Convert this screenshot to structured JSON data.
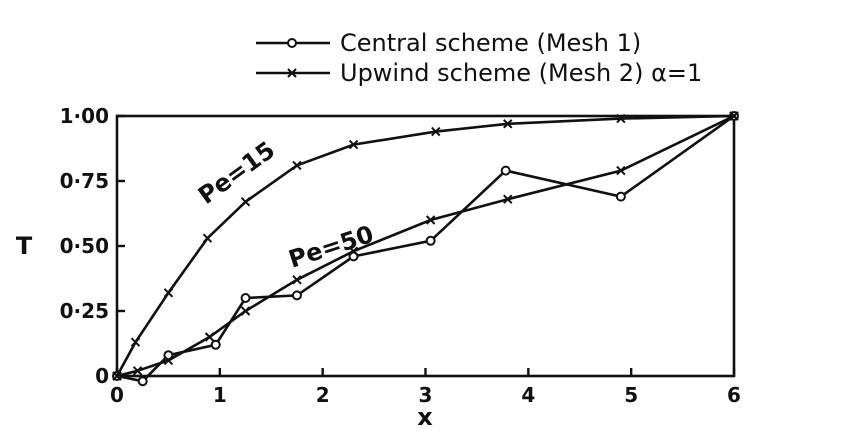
{
  "chart_data": {
    "type": "line",
    "xlabel": "x",
    "ylabel": "T",
    "xlim": [
      0,
      6
    ],
    "ylim": [
      0,
      1
    ],
    "xticks": [
      "0",
      "1",
      "2",
      "3",
      "4",
      "5",
      "6"
    ],
    "yticks": [
      "0",
      "0·25",
      "0·50",
      "0·75",
      "1·00"
    ],
    "legend": {
      "placement": "top-right",
      "entries": [
        {
          "marker": "circle",
          "label": "Central scheme (Mesh 1)"
        },
        {
          "marker": "cross",
          "label": "Upwind scheme (Mesh 2) α=1"
        }
      ]
    },
    "annotations": [
      "Pe=15",
      "Pe=50"
    ],
    "series": [
      {
        "marker": "circle",
        "x": [
          0,
          0.25,
          0.5,
          0.96,
          1.25,
          1.75,
          2.3,
          3.05,
          3.78,
          4.9,
          6.0
        ],
        "y": [
          0.0,
          -0.02,
          0.08,
          0.12,
          0.3,
          0.31,
          0.46,
          0.52,
          0.79,
          0.69,
          1.0
        ]
      },
      {
        "marker": "cross",
        "x": [
          0,
          0.2,
          0.5,
          0.9,
          1.25,
          1.75,
          2.3,
          3.05,
          3.8,
          4.9,
          6.0
        ],
        "y": [
          0.0,
          0.02,
          0.06,
          0.15,
          0.25,
          0.37,
          0.48,
          0.6,
          0.68,
          0.79,
          1.0
        ]
      },
      {
        "marker": "cross",
        "x": [
          0,
          0.18,
          0.5,
          0.88,
          1.25,
          1.75,
          2.3,
          3.1,
          3.8,
          4.9,
          6.0
        ],
        "y": [
          0.0,
          0.13,
          0.32,
          0.53,
          0.67,
          0.81,
          0.89,
          0.94,
          0.97,
          0.99,
          1.0
        ]
      }
    ]
  }
}
